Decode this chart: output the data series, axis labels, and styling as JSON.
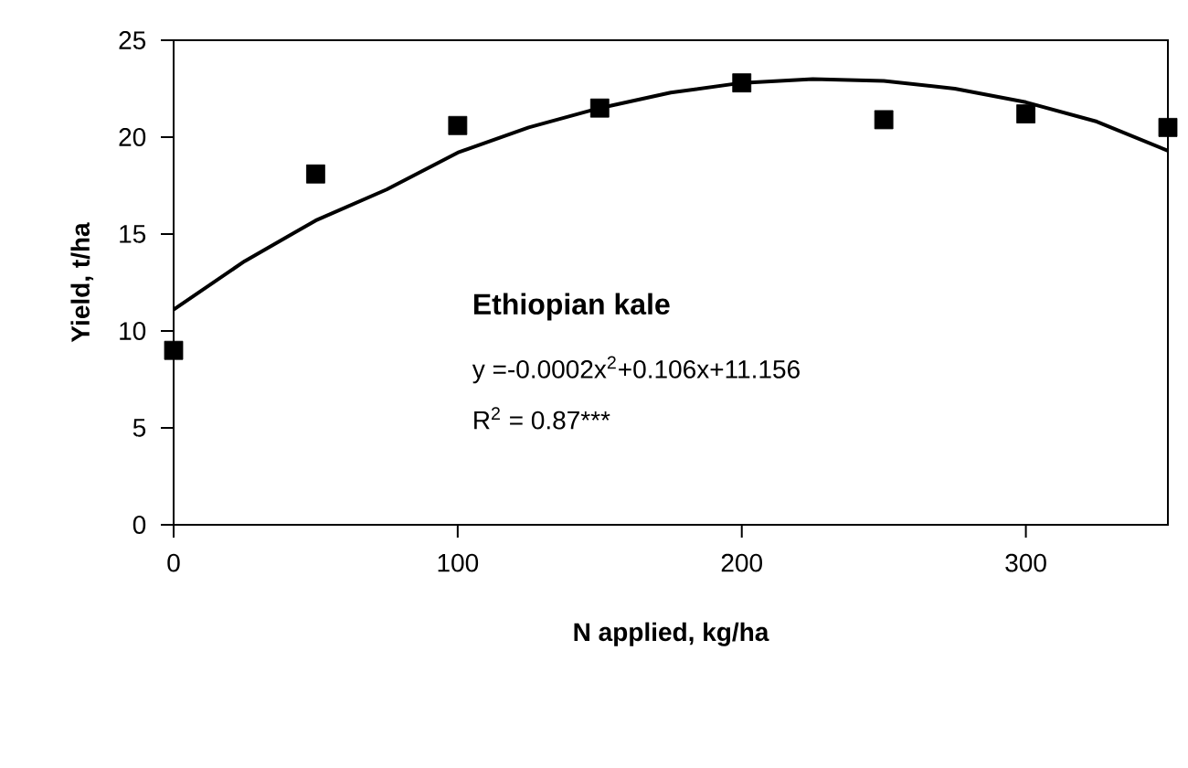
{
  "chart_data": {
    "type": "scatter",
    "xlabel": "N applied, kg/ha",
    "ylabel": "Yield, t/ha",
    "xlim": [
      0,
      350
    ],
    "ylim": [
      0,
      25
    ],
    "xticks": [
      0,
      100,
      200,
      300
    ],
    "yticks": [
      0,
      5,
      10,
      15,
      20,
      25
    ],
    "grid": false,
    "legend": false,
    "annotations": [
      "**Ethiopian kale**",
      "y =-0.0002x$^{2}$+0.106x+11.156",
      "R$^{2}$ = 0.87***"
    ],
    "series": [
      {
        "marker": "square",
        "color": "#000000",
        "x": [
          0,
          50,
          100,
          150,
          200,
          250,
          300,
          350
        ],
        "values": [
          9.0,
          18.1,
          20.6,
          21.5,
          22.8,
          20.9,
          21.2,
          20.5
        ]
      },
      {
        "type": "line",
        "marker": "none",
        "line_style": "solid",
        "color": "#000000",
        "x": [
          0,
          25,
          50,
          75,
          100,
          125,
          150,
          175,
          200,
          225,
          250,
          275,
          300,
          325,
          350
        ],
        "values": [
          11.1,
          13.6,
          15.7,
          17.3,
          19.2,
          20.5,
          21.5,
          22.3,
          22.8,
          23.0,
          22.9,
          22.5,
          21.8,
          20.8,
          19.3
        ]
      }
    ]
  }
}
